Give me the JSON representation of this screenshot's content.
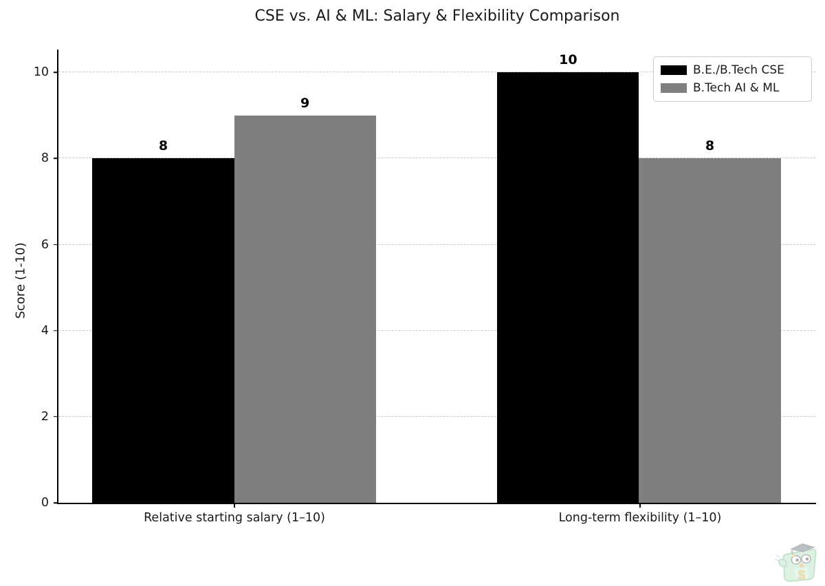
{
  "chart_data": {
    "type": "bar",
    "title": "CSE vs. AI & ML: Salary & Flexibility Comparison",
    "ylabel": "Score (1-10)",
    "xlabel": "",
    "categories": [
      "Relative starting salary (1–10)",
      "Long-term flexibility (1–10)"
    ],
    "series": [
      {
        "name": "B.E./B.Tech CSE",
        "color": "#000000",
        "values": [
          8,
          10
        ]
      },
      {
        "name": "B.Tech AI & ML",
        "color": "#7f7f7f",
        "values": [
          9,
          8
        ]
      }
    ],
    "yticks": [
      0,
      2,
      4,
      6,
      8,
      10
    ],
    "ylim": [
      0,
      10.53
    ],
    "grid": "horizontal-dashed",
    "grid_color": "#c9c9c9",
    "legend_position": "upper-right",
    "value_labels_bold": true
  },
  "watermark": {
    "description": "green graduate mascot with graduation cap",
    "letter": "S"
  }
}
